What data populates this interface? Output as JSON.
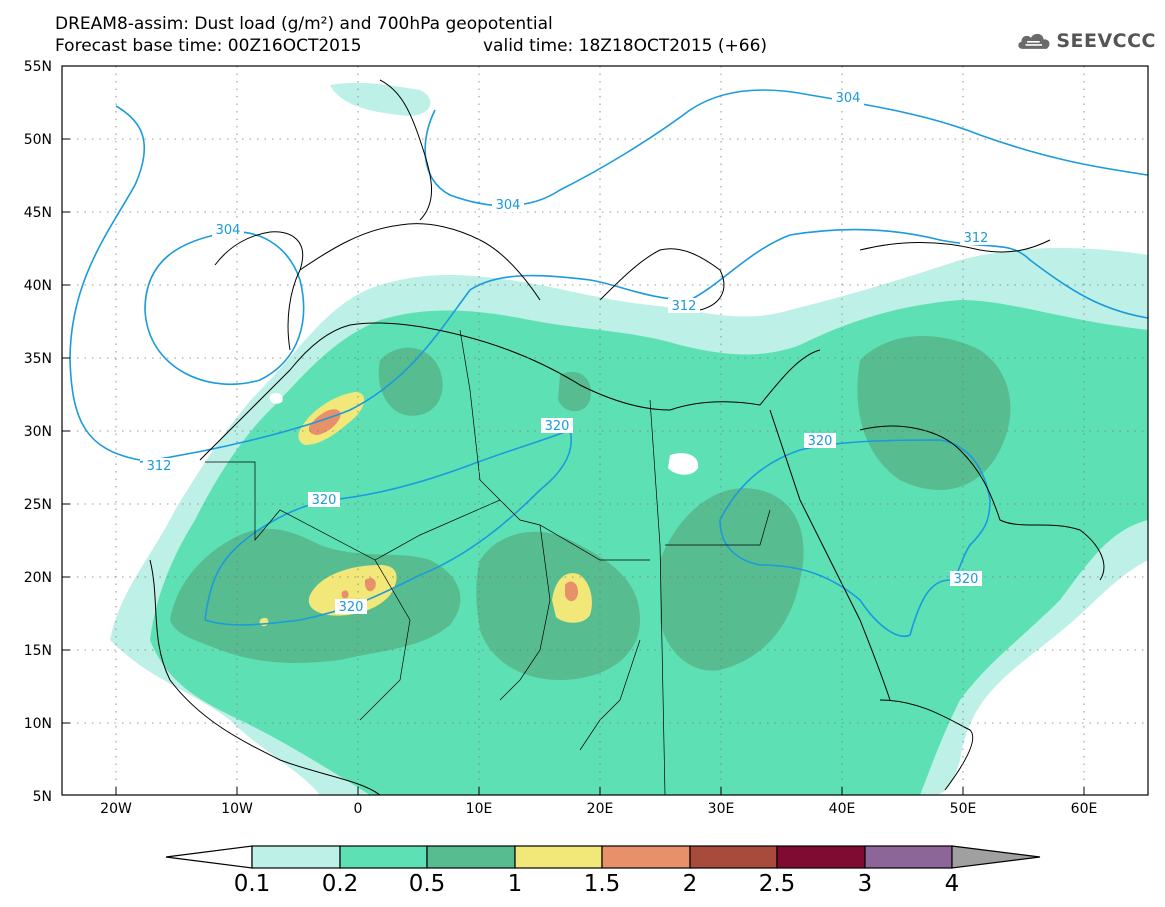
{
  "header": {
    "title_line1": "DREAM8-assim: Dust load (g/m²) and 700hPa geopotential",
    "title_line2": "Forecast base time: 00Z16OCT2015",
    "valid_time": "valid time: 18Z18OCT2015 (+66)"
  },
  "logo": {
    "text": "SEEVCCC",
    "icon": "cloud-icon"
  },
  "map": {
    "lon_ticks": [
      "20W",
      "10W",
      "0",
      "10E",
      "20E",
      "30E",
      "40E",
      "50E",
      "60E"
    ],
    "lat_ticks": [
      "55N",
      "50N",
      "45N",
      "40N",
      "35N",
      "30N",
      "25N",
      "20N",
      "15N",
      "10N",
      "5N"
    ],
    "contour_labels": [
      "304",
      "304",
      "304",
      "312",
      "312",
      "312",
      "320",
      "320",
      "320",
      "320",
      "320"
    ],
    "contour_color": "#1a9bdc"
  },
  "colorbar": {
    "labels": [
      "0.1",
      "0.2",
      "0.5",
      "1",
      "1.5",
      "2",
      "2.5",
      "3",
      "4"
    ],
    "colors": [
      "#bdf0e6",
      "#5ee0b5",
      "#57bd90",
      "#f2e879",
      "#e8906a",
      "#a84a3c",
      "#7f0a32",
      "#8c6699",
      "#a0a0a0"
    ],
    "under_color": "#ffffff"
  }
}
